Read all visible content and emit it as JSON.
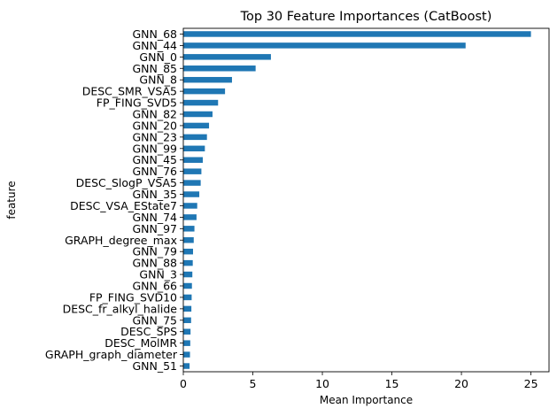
{
  "chart_data": {
    "type": "bar",
    "orientation": "horizontal",
    "title": "Top 30 Feature Importances (CatBoost)",
    "xlabel": "Mean Importance",
    "ylabel": "feature",
    "xlim": [
      0,
      26.3
    ],
    "xticks": [
      0,
      5,
      10,
      15,
      20,
      25
    ],
    "grid": false,
    "legend": "none",
    "bar_color": "#1f77b4",
    "categories": [
      "GNN_68",
      "GNN_44",
      "GNN_0",
      "GNN_85",
      "GNN_8",
      "DESC_SMR_VSA5",
      "FP_FING_SVD5",
      "GNN_82",
      "GNN_20",
      "GNN_23",
      "GNN_99",
      "GNN_45",
      "GNN_76",
      "DESC_SlogP_VSA5",
      "GNN_35",
      "DESC_VSA_EState7",
      "GNN_74",
      "GNN_97",
      "GRAPH_degree_max",
      "GNN_79",
      "GNN_88",
      "GNN_3",
      "GNN_66",
      "FP_FING_SVD10",
      "DESC_fr_alkyl_halide",
      "GNN_75",
      "DESC_SPS",
      "DESC_MolMR",
      "GRAPH_graph_diameter",
      "GNN_51"
    ],
    "values": [
      25.0,
      20.3,
      6.3,
      5.2,
      3.5,
      3.0,
      2.5,
      2.1,
      1.85,
      1.7,
      1.55,
      1.4,
      1.3,
      1.25,
      1.15,
      1.0,
      0.95,
      0.8,
      0.75,
      0.7,
      0.68,
      0.65,
      0.62,
      0.6,
      0.58,
      0.56,
      0.52,
      0.5,
      0.48,
      0.45
    ]
  }
}
